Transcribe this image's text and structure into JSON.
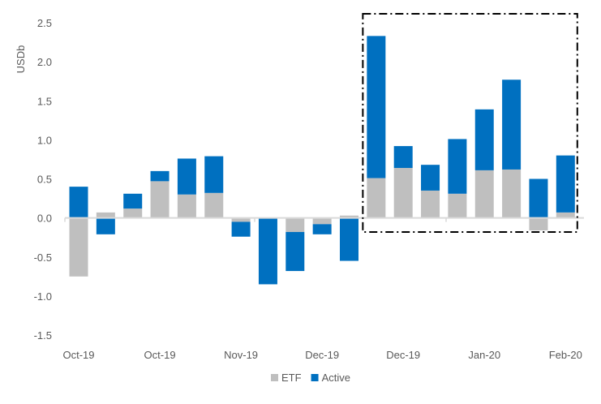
{
  "chart_data": {
    "type": "bar",
    "stacked": true,
    "ylabel": "USDb",
    "ylim": [
      -1.5,
      2.5
    ],
    "yticks": [
      "2.5",
      "2.0",
      "1.5",
      "1.0",
      "0.5",
      "0.0",
      "-0.5",
      "-1.0",
      "-1.5"
    ],
    "ytick_values": [
      2.5,
      2.0,
      1.5,
      1.0,
      0.5,
      0.0,
      -0.5,
      -1.0,
      -1.5
    ],
    "xtick_labels": [
      "Oct-19",
      "Oct-19",
      "Nov-19",
      "Dec-19",
      "Dec-19",
      "Jan-20",
      "Feb-20"
    ],
    "xtick_every": 3,
    "grid": false,
    "legend_position": "bottom",
    "series": [
      {
        "name": "ETF",
        "color": "#bfbfbf",
        "values": [
          -0.75,
          0.07,
          0.12,
          0.47,
          0.3,
          0.32,
          -0.05,
          0.0,
          -0.18,
          -0.08,
          0.03,
          0.51,
          0.64,
          0.35,
          0.31,
          0.61,
          0.62,
          -0.16,
          0.07
        ]
      },
      {
        "name": "Active",
        "color": "#0070c0",
        "values": [
          0.4,
          -0.21,
          0.19,
          0.13,
          0.46,
          0.47,
          -0.19,
          -0.85,
          -0.5,
          -0.13,
          -0.55,
          1.82,
          0.28,
          0.33,
          0.7,
          0.78,
          1.15,
          0.5,
          0.73
        ]
      }
    ],
    "highlight_range": [
      11,
      18
    ]
  }
}
